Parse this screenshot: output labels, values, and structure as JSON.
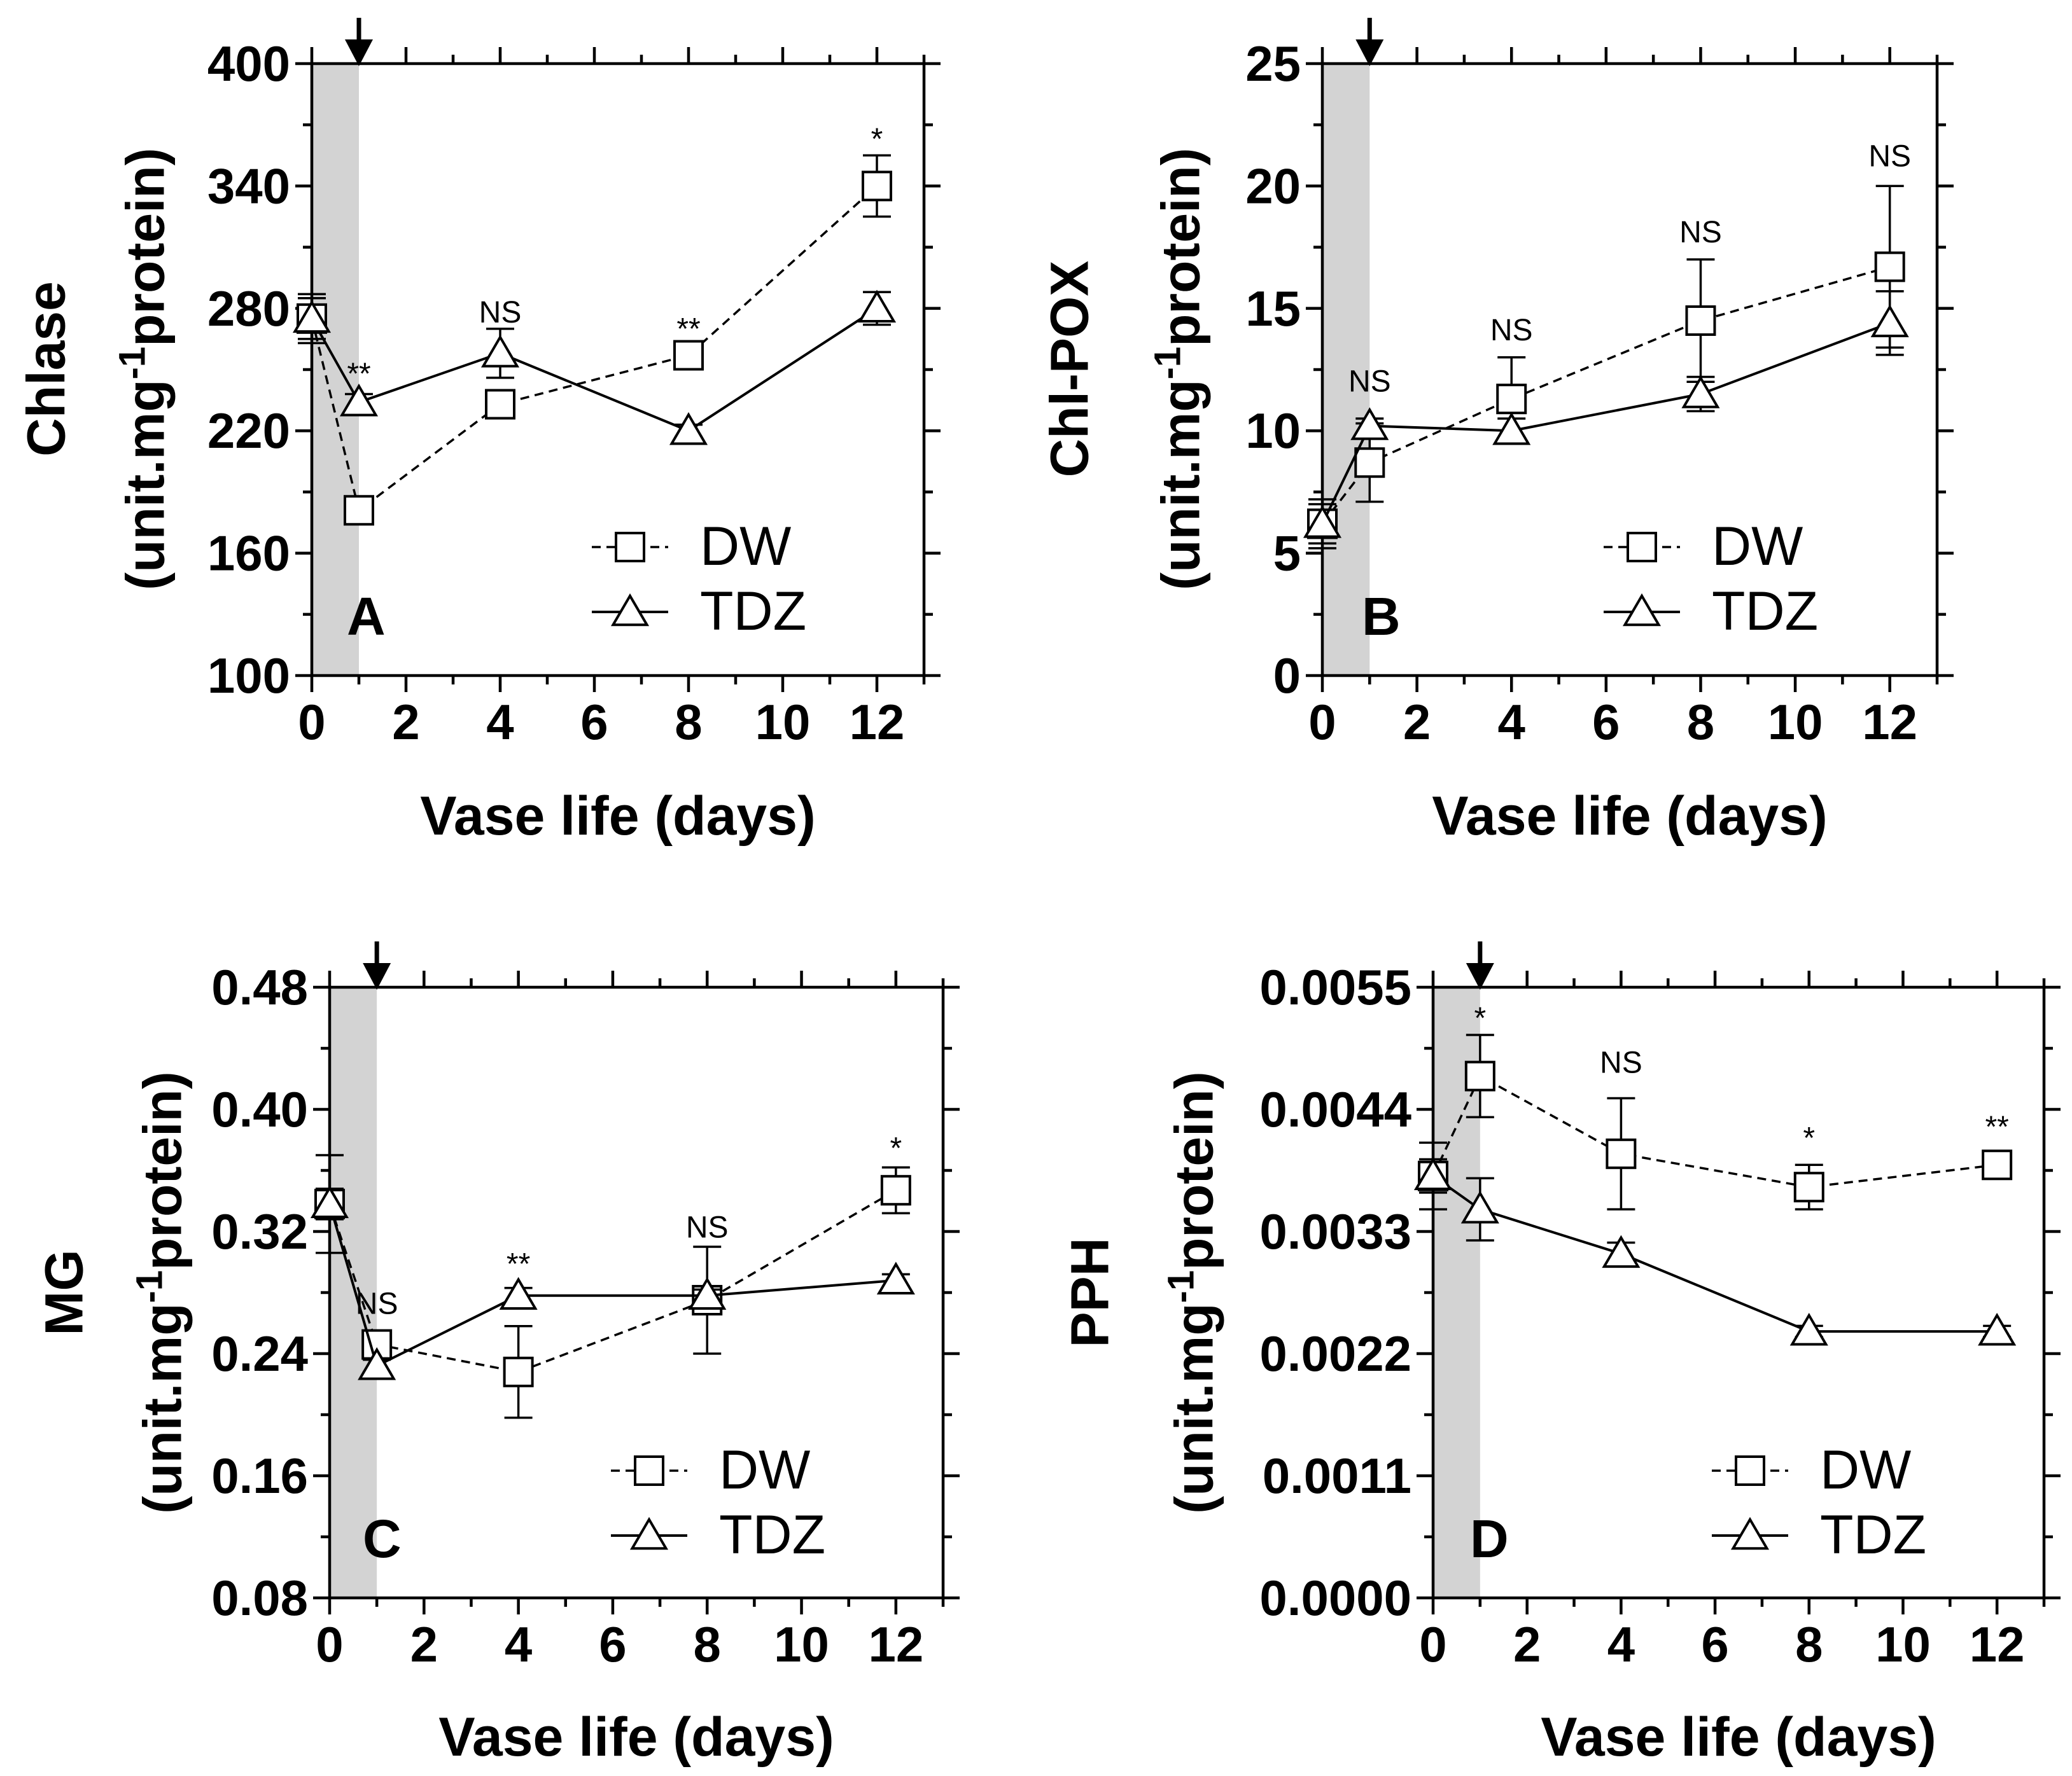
{
  "legend": {
    "dw": "DW",
    "tdz": "TDZ"
  },
  "chart_data": [
    {
      "type": "line",
      "panel_label": "A",
      "ylabel_main": "Chlase",
      "ylabel_unit": "(unit.mg",
      "ylabel_sup": "-1",
      "ylabel_tail": "protein)",
      "xlabel": "Vase life (days)",
      "xlim": [
        0,
        13
      ],
      "ylim": [
        100,
        400
      ],
      "xticks": [
        0,
        2,
        4,
        6,
        8,
        10,
        12
      ],
      "yticks": [
        100,
        160,
        220,
        280,
        340,
        400
      ],
      "ytick_labels": [
        "100",
        "160",
        "220",
        "280",
        "340",
        "400"
      ],
      "shade_x": [
        0,
        1
      ],
      "arrow_x": 1,
      "x": [
        0,
        1,
        4,
        8,
        12
      ],
      "series": [
        {
          "name": "DW",
          "marker": "square",
          "dash": true,
          "values": [
            275,
            181,
            233,
            257,
            340
          ],
          "err": [
            10,
            6,
            6,
            6,
            15
          ]
        },
        {
          "name": "TDZ",
          "marker": "triangle",
          "dash": false,
          "values": [
            275,
            234,
            258,
            220,
            280
          ],
          "err": [
            12,
            4,
            12,
            3,
            8
          ]
        }
      ],
      "annotations": [
        {
          "x": 1,
          "y": 243,
          "text": "**"
        },
        {
          "x": 4,
          "y": 273,
          "text": "NS"
        },
        {
          "x": 8,
          "y": 265,
          "text": "**"
        },
        {
          "x": 12,
          "y": 358,
          "text": "*"
        }
      ]
    },
    {
      "type": "line",
      "panel_label": "B",
      "ylabel_main": "Chl-POX",
      "ylabel_unit": "(unit.mg",
      "ylabel_sup": "-1",
      "ylabel_tail": "protein)",
      "xlabel": "Vase life (days)",
      "xlim": [
        0,
        13
      ],
      "ylim": [
        0,
        25
      ],
      "xticks": [
        0,
        2,
        4,
        6,
        8,
        10,
        12
      ],
      "yticks": [
        0,
        5,
        10,
        15,
        20,
        25
      ],
      "ytick_labels": [
        "0",
        "5",
        "10",
        "15",
        "20",
        "25"
      ],
      "shade_x": [
        0,
        1
      ],
      "arrow_x": 1,
      "x": [
        0,
        1,
        4,
        8,
        12
      ],
      "series": [
        {
          "name": "DW",
          "marker": "square",
          "dash": true,
          "values": [
            6.2,
            8.7,
            11.3,
            14.5,
            16.7
          ],
          "err": [
            1.0,
            1.6,
            1.7,
            2.5,
            3.3
          ]
        },
        {
          "name": "TDZ",
          "marker": "triangle",
          "dash": false,
          "values": [
            6.2,
            10.2,
            10.0,
            11.5,
            14.4
          ],
          "err": [
            0.8,
            0.3,
            0.5,
            0.7,
            1.3
          ]
        }
      ],
      "annotations": [
        {
          "x": 1,
          "y": 11.6,
          "text": "NS"
        },
        {
          "x": 4,
          "y": 13.7,
          "text": "NS"
        },
        {
          "x": 8,
          "y": 17.7,
          "text": "NS"
        },
        {
          "x": 12,
          "y": 20.8,
          "text": "NS"
        }
      ]
    },
    {
      "type": "line",
      "panel_label": "C",
      "ylabel_main": "MG",
      "ylabel_unit": "(unit.mg",
      "ylabel_sup": "-1",
      "ylabel_tail": "protein)",
      "xlabel": "Vase life (days)",
      "xlim": [
        0,
        13
      ],
      "ylim": [
        0.08,
        0.48
      ],
      "xticks": [
        0,
        2,
        4,
        6,
        8,
        10,
        12
      ],
      "yticks": [
        0.08,
        0.16,
        0.24,
        0.32,
        0.4,
        0.48
      ],
      "ytick_labels": [
        "0.08",
        "0.16",
        "0.24",
        "0.32",
        "0.40",
        "0.48"
      ],
      "shade_x": [
        0,
        1
      ],
      "arrow_x": 1,
      "x": [
        0,
        1,
        4,
        8,
        12
      ],
      "series": [
        {
          "name": "DW",
          "marker": "square",
          "dash": true,
          "values": [
            0.338,
            0.246,
            0.228,
            0.275,
            0.347
          ],
          "err": [
            0.032,
            0.007,
            0.03,
            0.035,
            0.015
          ]
        },
        {
          "name": "TDZ",
          "marker": "triangle",
          "dash": false,
          "values": [
            0.338,
            0.232,
            0.278,
            0.278,
            0.288
          ],
          "err": [
            0.01,
            0.004,
            0.005,
            0.004,
            0.004
          ]
        }
      ],
      "annotations": [
        {
          "x": 1,
          "y": 0.266,
          "text": "NS"
        },
        {
          "x": 4,
          "y": 0.292,
          "text": "**"
        },
        {
          "x": 8,
          "y": 0.316,
          "text": "NS"
        },
        {
          "x": 12,
          "y": 0.368,
          "text": "*"
        }
      ]
    },
    {
      "type": "line",
      "panel_label": "D",
      "ylabel_main": "PPH",
      "ylabel_unit": "(unit.mg",
      "ylabel_sup": "-1",
      "ylabel_tail": "protein)",
      "xlabel": "Vase life (days)",
      "xlim": [
        0,
        13
      ],
      "ylim": [
        0,
        0.0055
      ],
      "xticks": [
        0,
        2,
        4,
        6,
        8,
        10,
        12
      ],
      "yticks": [
        0,
        0.0011,
        0.0022,
        0.0033,
        0.0044,
        0.0055
      ],
      "ytick_labels": [
        "0.0000",
        "0.0011",
        "0.0022",
        "0.0033",
        "0.0044",
        "0.0055"
      ],
      "shade_x": [
        0,
        1
      ],
      "arrow_x": 1,
      "x": [
        0,
        1,
        4,
        8,
        12
      ],
      "series": [
        {
          "name": "DW",
          "marker": "square",
          "dash": true,
          "values": [
            0.0038,
            0.0047,
            0.004,
            0.0037,
            0.0039
          ],
          "err": [
            0.0003,
            0.00037,
            0.0005,
            0.0002,
            5e-05
          ]
        },
        {
          "name": "TDZ",
          "marker": "triangle",
          "dash": false,
          "values": [
            0.0038,
            0.0035,
            0.0031,
            0.0024,
            0.0024
          ],
          "err": [
            0.00015,
            0.00028,
            0.0001,
            5e-05,
            5e-05
          ]
        }
      ],
      "annotations": [
        {
          "x": 1,
          "y": 0.00513,
          "text": "*"
        },
        {
          "x": 4,
          "y": 0.00473,
          "text": "NS"
        },
        {
          "x": 8,
          "y": 0.00405,
          "text": "*"
        },
        {
          "x": 12,
          "y": 0.00415,
          "text": "**"
        }
      ]
    }
  ]
}
